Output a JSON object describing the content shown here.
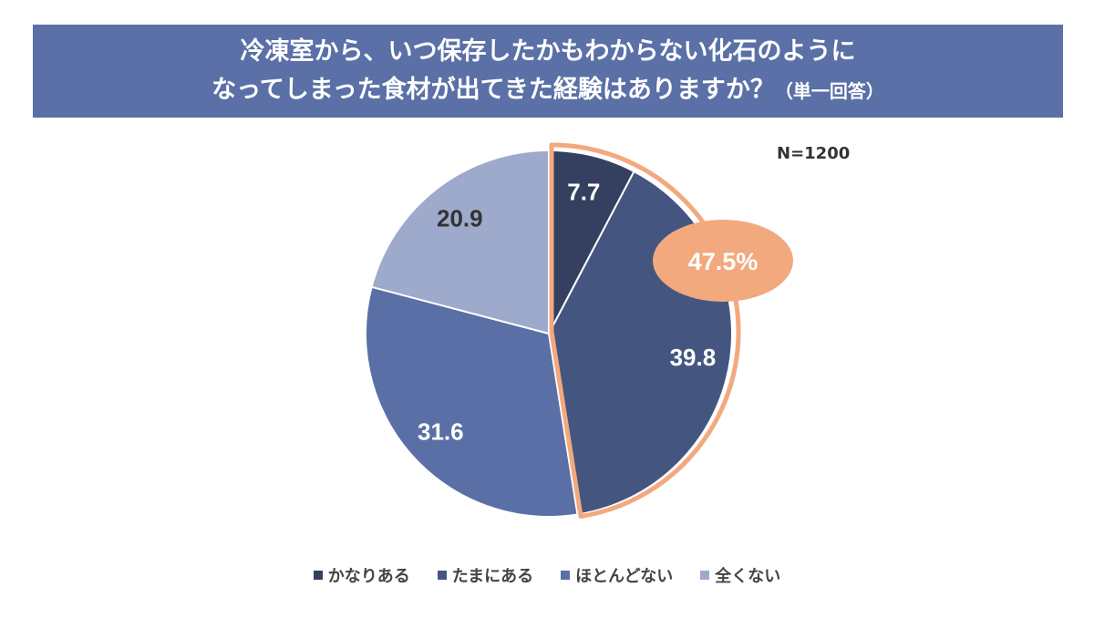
{
  "chart_data": {
    "type": "pie",
    "title_line1": "冷凍室から、いつ保存したかもわからない化石のように",
    "title_line2": "なってしまった食材が出てきた経験はありますか？",
    "title_note": "（単一回答）",
    "sample_size": "N=1200",
    "categories": [
      "かなりある",
      "たまにある",
      "ほとんどない",
      "全くない"
    ],
    "values": [
      7.7,
      39.8,
      31.6,
      20.9
    ],
    "data_labels": [
      "7.7",
      "39.8",
      "31.6",
      "20.9"
    ],
    "colors": [
      "#353f60",
      "#44567f",
      "#5a6fa6",
      "#9eaacb"
    ],
    "highlight": {
      "label": "47.5%",
      "covers": [
        "かなりある",
        "たまにある"
      ],
      "color": "#f2a97e"
    },
    "start_angle": "12 o'clock, clockwise",
    "legend_position": "bottom"
  },
  "colors": {
    "title_bar": "#5a70a6"
  }
}
